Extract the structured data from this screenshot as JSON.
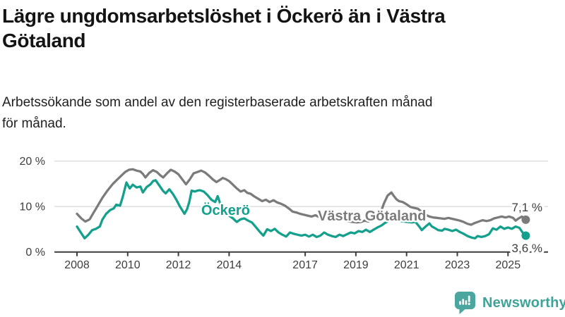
{
  "header": {
    "title_line1": "Lägre ungdomsarbetslöshet i Öckerö än i Västra",
    "title_line2": "Götaland",
    "subtitle_line1": "Arbetssökande som andel av den registerbaserade arbetskraften månad",
    "subtitle_line2": "för månad."
  },
  "branding": {
    "logo_text": "Newsworthy",
    "logo_color": "#3fa29a",
    "logo_icon": "speech-bubble-bar-chart-icon",
    "logo_icon_color": "#4aa69e"
  },
  "chart_data": {
    "type": "line",
    "title": "Lägre ungdomsarbetslöshet i Öckerö än i Västra Götaland",
    "subtitle": "Arbetssökande som andel av den registerbaserade arbetskraften månad för månad.",
    "unit": "%",
    "grid": "horizontal",
    "x_axis": {
      "tick_years": [
        2008,
        2010,
        2012,
        2014,
        2017,
        2019,
        2021,
        2023,
        2025
      ],
      "range": [
        2008.0,
        2025.7
      ]
    },
    "y_axis": {
      "ticks": [
        {
          "value": 0,
          "label": "0 %"
        },
        {
          "value": 10,
          "label": "10 %"
        },
        {
          "value": 20,
          "label": "20 %"
        }
      ],
      "range": [
        0,
        21
      ]
    },
    "series": [
      {
        "name": "Västra Götaland",
        "color": "#7b7b7b",
        "end_value": 7.1,
        "end_label": "7,1 %",
        "points": [
          [
            2008.0,
            8.4
          ],
          [
            2008.17,
            7.4
          ],
          [
            2008.33,
            6.7
          ],
          [
            2008.5,
            7.2
          ],
          [
            2008.65,
            8.6
          ],
          [
            2008.8,
            10.0
          ],
          [
            2009.0,
            11.9
          ],
          [
            2009.2,
            13.5
          ],
          [
            2009.4,
            14.9
          ],
          [
            2009.6,
            16.0
          ],
          [
            2009.75,
            16.8
          ],
          [
            2009.9,
            17.6
          ],
          [
            2010.05,
            18.1
          ],
          [
            2010.2,
            18.2
          ],
          [
            2010.35,
            17.9
          ],
          [
            2010.5,
            17.7
          ],
          [
            2010.6,
            17.2
          ],
          [
            2010.7,
            16.4
          ],
          [
            2010.85,
            17.4
          ],
          [
            2011.0,
            18.0
          ],
          [
            2011.15,
            17.6
          ],
          [
            2011.3,
            16.8
          ],
          [
            2011.4,
            16.4
          ],
          [
            2011.55,
            17.3
          ],
          [
            2011.7,
            18.1
          ],
          [
            2011.85,
            17.7
          ],
          [
            2012.0,
            17.1
          ],
          [
            2012.15,
            16.0
          ],
          [
            2012.3,
            14.9
          ],
          [
            2012.45,
            16.0
          ],
          [
            2012.6,
            17.3
          ],
          [
            2012.75,
            17.6
          ],
          [
            2012.9,
            17.9
          ],
          [
            2013.05,
            17.5
          ],
          [
            2013.2,
            16.8
          ],
          [
            2013.35,
            16.0
          ],
          [
            2013.5,
            15.4
          ],
          [
            2013.62,
            15.8
          ],
          [
            2013.75,
            16.3
          ],
          [
            2013.88,
            16.0
          ],
          [
            2014.0,
            15.6
          ],
          [
            2014.15,
            14.8
          ],
          [
            2014.3,
            14.0
          ],
          [
            2014.45,
            13.3
          ],
          [
            2014.6,
            13.6
          ],
          [
            2014.72,
            13.0
          ],
          [
            2014.85,
            12.8
          ],
          [
            2015.0,
            12.2
          ],
          [
            2015.15,
            11.7
          ],
          [
            2015.3,
            11.2
          ],
          [
            2015.45,
            11.5
          ],
          [
            2015.6,
            11.0
          ],
          [
            2015.75,
            11.4
          ],
          [
            2015.9,
            10.9
          ],
          [
            2016.05,
            10.6
          ],
          [
            2016.2,
            10.2
          ],
          [
            2016.35,
            9.6
          ],
          [
            2016.5,
            8.9
          ],
          [
            2016.65,
            8.7
          ],
          [
            2016.8,
            8.4
          ],
          [
            2016.95,
            8.2
          ],
          [
            2017.1,
            8.0
          ],
          [
            2017.25,
            7.8
          ],
          [
            2017.4,
            8.1
          ],
          [
            2017.55,
            7.7
          ],
          [
            2017.7,
            7.5
          ],
          [
            2017.85,
            7.6
          ],
          [
            2018.0,
            7.3
          ],
          [
            2018.15,
            7.1
          ],
          [
            2018.3,
            7.0
          ],
          [
            2018.45,
            7.2
          ],
          [
            2018.6,
            6.9
          ],
          [
            2018.75,
            6.7
          ],
          [
            2018.9,
            6.6
          ],
          [
            2019.05,
            6.5
          ],
          [
            2019.2,
            6.6
          ],
          [
            2019.35,
            6.9
          ],
          [
            2019.5,
            6.7
          ],
          [
            2019.65,
            7.0
          ],
          [
            2019.8,
            7.4
          ],
          [
            2019.95,
            8.2
          ],
          [
            2020.1,
            10.6
          ],
          [
            2020.25,
            12.4
          ],
          [
            2020.4,
            13.1
          ],
          [
            2020.5,
            12.3
          ],
          [
            2020.6,
            11.6
          ],
          [
            2020.7,
            11.2
          ],
          [
            2020.85,
            11.0
          ],
          [
            2021.0,
            10.5
          ],
          [
            2021.15,
            9.9
          ],
          [
            2021.3,
            9.7
          ],
          [
            2021.45,
            9.5
          ],
          [
            2021.6,
            8.8
          ],
          [
            2021.75,
            8.2
          ],
          [
            2021.9,
            7.8
          ],
          [
            2022.05,
            7.6
          ],
          [
            2022.2,
            7.5
          ],
          [
            2022.35,
            7.4
          ],
          [
            2022.5,
            7.3
          ],
          [
            2022.65,
            7.5
          ],
          [
            2022.8,
            7.3
          ],
          [
            2022.95,
            7.1
          ],
          [
            2023.1,
            6.9
          ],
          [
            2023.25,
            6.6
          ],
          [
            2023.4,
            6.2
          ],
          [
            2023.55,
            6.0
          ],
          [
            2023.7,
            6.4
          ],
          [
            2023.85,
            6.7
          ],
          [
            2024.0,
            7.0
          ],
          [
            2024.15,
            6.8
          ],
          [
            2024.3,
            7.0
          ],
          [
            2024.45,
            7.4
          ],
          [
            2024.6,
            7.6
          ],
          [
            2024.75,
            7.8
          ],
          [
            2024.9,
            7.6
          ],
          [
            2025.05,
            7.8
          ],
          [
            2025.2,
            7.5
          ],
          [
            2025.3,
            6.9
          ],
          [
            2025.42,
            7.4
          ],
          [
            2025.55,
            7.8
          ],
          [
            2025.7,
            7.1
          ]
        ]
      },
      {
        "name": "Öckerö",
        "color": "#14a08c",
        "end_value": 3.6,
        "end_label": "3,6 %",
        "points": [
          [
            2008.0,
            5.6
          ],
          [
            2008.15,
            4.3
          ],
          [
            2008.3,
            3.0
          ],
          [
            2008.45,
            3.8
          ],
          [
            2008.6,
            4.8
          ],
          [
            2008.75,
            5.1
          ],
          [
            2008.9,
            5.6
          ],
          [
            2009.0,
            7.1
          ],
          [
            2009.15,
            8.4
          ],
          [
            2009.3,
            9.2
          ],
          [
            2009.45,
            9.6
          ],
          [
            2009.55,
            10.4
          ],
          [
            2009.7,
            10.2
          ],
          [
            2009.8,
            12.0
          ],
          [
            2009.95,
            15.3
          ],
          [
            2010.08,
            14.0
          ],
          [
            2010.2,
            14.8
          ],
          [
            2010.35,
            14.2
          ],
          [
            2010.5,
            14.4
          ],
          [
            2010.6,
            13.1
          ],
          [
            2010.75,
            14.3
          ],
          [
            2010.9,
            14.9
          ],
          [
            2011.0,
            15.6
          ],
          [
            2011.1,
            15.8
          ],
          [
            2011.25,
            14.6
          ],
          [
            2011.4,
            13.4
          ],
          [
            2011.5,
            12.9
          ],
          [
            2011.64,
            13.8
          ],
          [
            2011.78,
            12.8
          ],
          [
            2011.92,
            11.5
          ],
          [
            2012.06,
            10.0
          ],
          [
            2012.15,
            9.2
          ],
          [
            2012.24,
            8.4
          ],
          [
            2012.34,
            9.4
          ],
          [
            2012.43,
            11.0
          ],
          [
            2012.52,
            13.5
          ],
          [
            2012.65,
            13.3
          ],
          [
            2012.75,
            13.5
          ],
          [
            2012.85,
            13.6
          ],
          [
            2013.0,
            13.3
          ],
          [
            2013.15,
            12.5
          ],
          [
            2013.3,
            11.5
          ],
          [
            2013.45,
            11.0
          ],
          [
            2013.55,
            12.3
          ],
          [
            2013.7,
            9.8
          ],
          [
            2013.85,
            8.5
          ],
          [
            2014.0,
            8.0
          ],
          [
            2014.15,
            7.4
          ],
          [
            2014.3,
            6.6
          ],
          [
            2014.45,
            7.2
          ],
          [
            2014.6,
            7.4
          ],
          [
            2014.75,
            6.9
          ],
          [
            2014.9,
            6.5
          ],
          [
            2015.05,
            5.5
          ],
          [
            2015.2,
            4.5
          ],
          [
            2015.35,
            3.6
          ],
          [
            2015.5,
            5.0
          ],
          [
            2015.65,
            4.6
          ],
          [
            2015.8,
            5.1
          ],
          [
            2015.95,
            4.3
          ],
          [
            2016.1,
            3.8
          ],
          [
            2016.25,
            3.4
          ],
          [
            2016.4,
            4.3
          ],
          [
            2016.55,
            4.0
          ],
          [
            2016.7,
            3.8
          ],
          [
            2016.85,
            3.6
          ],
          [
            2017.0,
            3.8
          ],
          [
            2017.15,
            3.4
          ],
          [
            2017.3,
            3.8
          ],
          [
            2017.45,
            3.3
          ],
          [
            2017.6,
            3.6
          ],
          [
            2017.75,
            4.3
          ],
          [
            2017.9,
            3.8
          ],
          [
            2018.05,
            3.5
          ],
          [
            2018.2,
            3.3
          ],
          [
            2018.35,
            3.8
          ],
          [
            2018.5,
            3.5
          ],
          [
            2018.65,
            3.9
          ],
          [
            2018.8,
            4.3
          ],
          [
            2018.95,
            4.1
          ],
          [
            2019.1,
            4.6
          ],
          [
            2019.25,
            4.4
          ],
          [
            2019.4,
            4.9
          ],
          [
            2019.55,
            4.4
          ],
          [
            2019.7,
            4.9
          ],
          [
            2019.85,
            5.4
          ],
          [
            2020.0,
            5.8
          ],
          [
            2020.15,
            6.4
          ],
          [
            2020.3,
            6.9
          ],
          [
            2020.45,
            7.1
          ],
          [
            2020.6,
            6.9
          ],
          [
            2020.75,
            6.8
          ],
          [
            2020.9,
            6.7
          ],
          [
            2021.05,
            6.6
          ],
          [
            2021.2,
            6.5
          ],
          [
            2021.35,
            6.6
          ],
          [
            2021.5,
            5.6
          ],
          [
            2021.6,
            4.8
          ],
          [
            2021.75,
            5.6
          ],
          [
            2021.9,
            6.3
          ],
          [
            2022.0,
            5.6
          ],
          [
            2022.1,
            5.3
          ],
          [
            2022.25,
            4.8
          ],
          [
            2022.4,
            4.7
          ],
          [
            2022.5,
            5.1
          ],
          [
            2022.65,
            4.9
          ],
          [
            2022.8,
            4.6
          ],
          [
            2022.95,
            4.9
          ],
          [
            2023.1,
            4.4
          ],
          [
            2023.25,
            4.0
          ],
          [
            2023.4,
            3.5
          ],
          [
            2023.55,
            3.2
          ],
          [
            2023.7,
            3.0
          ],
          [
            2023.8,
            3.5
          ],
          [
            2023.95,
            3.3
          ],
          [
            2024.1,
            3.5
          ],
          [
            2024.25,
            3.9
          ],
          [
            2024.4,
            5.2
          ],
          [
            2024.55,
            4.9
          ],
          [
            2024.7,
            5.6
          ],
          [
            2024.85,
            5.1
          ],
          [
            2025.0,
            5.4
          ],
          [
            2025.15,
            5.1
          ],
          [
            2025.3,
            5.6
          ],
          [
            2025.45,
            5.3
          ],
          [
            2025.6,
            4.1
          ],
          [
            2025.7,
            3.6
          ]
        ]
      }
    ],
    "legend": "inline-labels",
    "annotations": [
      "Öckerö",
      "Västra Götaland",
      "7,1 %",
      "3,6 %"
    ]
  }
}
